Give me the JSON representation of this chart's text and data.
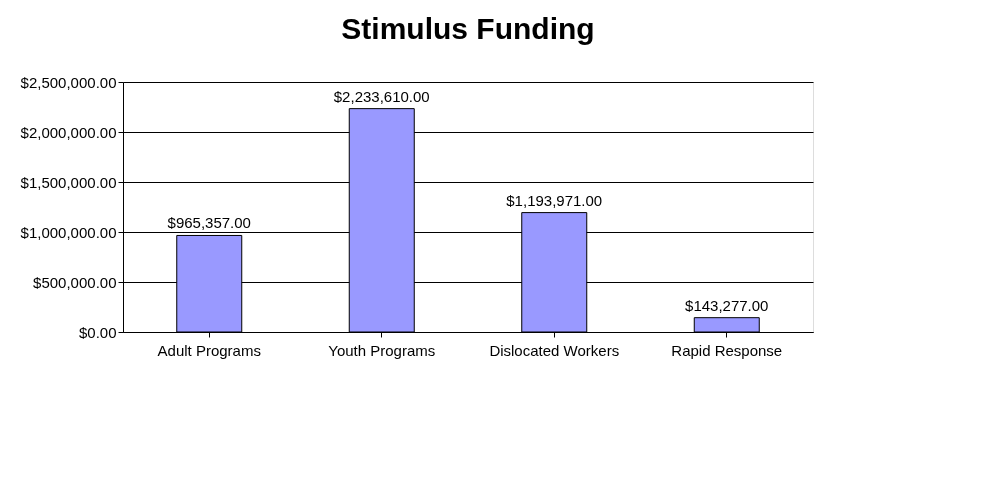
{
  "chart_data": {
    "type": "bar",
    "title": "Stimulus Funding",
    "categories": [
      "Adult Programs",
      "Youth Programs",
      "Dislocated Workers",
      "Rapid Response"
    ],
    "values": [
      965357,
      2233610,
      1193971,
      143277
    ],
    "value_labels": [
      "$965,357.00",
      "$2,233,610.00",
      "$1,193,971.00",
      "$143,277.00"
    ],
    "color": "#9999ff",
    "ylim": [
      0,
      2500000
    ],
    "yticks": [
      {
        "value": 0,
        "label": "$0.00"
      },
      {
        "value": 500000,
        "label": "$500,000.00"
      },
      {
        "value": 1000000,
        "label": "$1,000,000.00"
      },
      {
        "value": 1500000,
        "label": "$1,500,000.00"
      },
      {
        "value": 2000000,
        "label": "$2,000,000.00"
      },
      {
        "value": 2500000,
        "label": "$2,500,000.00"
      }
    ],
    "grid": "y"
  }
}
